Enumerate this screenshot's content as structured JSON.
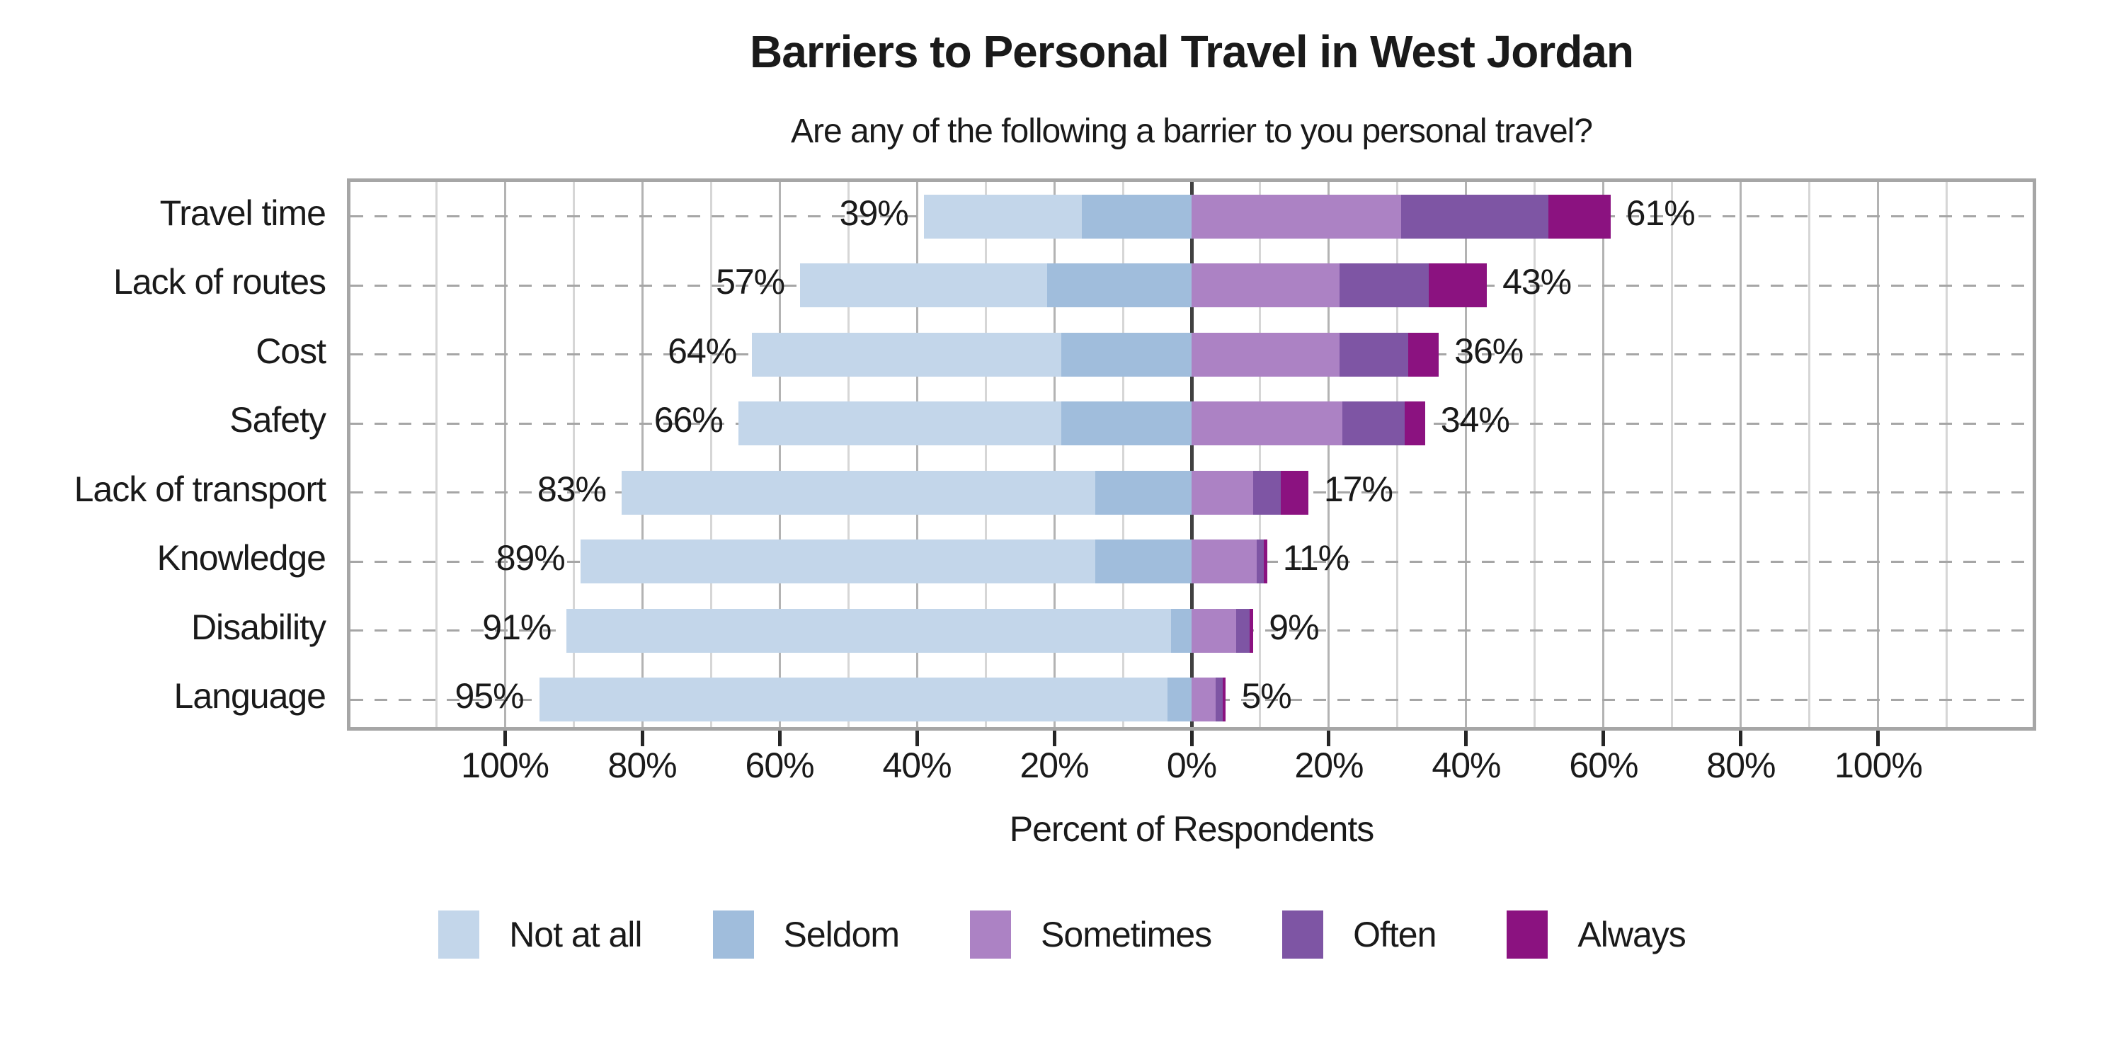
{
  "chart_data": {
    "type": "bar",
    "variant": "diverging-stacked-horizontal",
    "title": "Barriers to Personal Travel in West Jordan",
    "subtitle": "Are any of the following a barrier to you personal travel?",
    "xlabel": "Percent of Respondents",
    "x_axis": {
      "range_pct": [
        -123,
        123
      ],
      "tick_step": 20,
      "grid_step": 10,
      "ticks": [
        {
          "value": -100,
          "label": "100%"
        },
        {
          "value": -80,
          "label": "80%"
        },
        {
          "value": -60,
          "label": "60%"
        },
        {
          "value": -40,
          "label": "40%"
        },
        {
          "value": -20,
          "label": "20%"
        },
        {
          "value": 0,
          "label": "0%"
        },
        {
          "value": 20,
          "label": "20%"
        },
        {
          "value": 40,
          "label": "40%"
        },
        {
          "value": 60,
          "label": "60%"
        },
        {
          "value": 80,
          "label": "80%"
        },
        {
          "value": 100,
          "label": "100%"
        }
      ]
    },
    "legend": {
      "position": "bottom",
      "entries": [
        {
          "key": "not_at_all",
          "label": "Not at all",
          "color": "#c3d6ea"
        },
        {
          "key": "seldom",
          "label": "Seldom",
          "color": "#a0bddc"
        },
        {
          "key": "sometimes",
          "label": "Sometimes",
          "color": "#ac82c4"
        },
        {
          "key": "often",
          "label": "Often",
          "color": "#7e55a4"
        },
        {
          "key": "always",
          "label": "Always",
          "color": "#8b1280"
        }
      ]
    },
    "categories": [
      "Travel time",
      "Lack of routes",
      "Cost",
      "Safety",
      "Lack of transport",
      "Knowledge",
      "Disability",
      "Language"
    ],
    "rows": [
      {
        "category": "Travel time",
        "left_label": "39%",
        "right_label": "61%",
        "not_at_all": 23.0,
        "seldom": 16.0,
        "sometimes": 30.5,
        "often": 21.5,
        "always": 9.0
      },
      {
        "category": "Lack of routes",
        "left_label": "57%",
        "right_label": "43%",
        "not_at_all": 36.0,
        "seldom": 21.0,
        "sometimes": 21.5,
        "often": 13.0,
        "always": 8.5
      },
      {
        "category": "Cost",
        "left_label": "64%",
        "right_label": "36%",
        "not_at_all": 45.0,
        "seldom": 19.0,
        "sometimes": 21.5,
        "often": 10.0,
        "always": 4.5
      },
      {
        "category": "Safety",
        "left_label": "66%",
        "right_label": "34%",
        "not_at_all": 47.0,
        "seldom": 19.0,
        "sometimes": 22.0,
        "often": 9.0,
        "always": 3.0
      },
      {
        "category": "Lack of transport",
        "left_label": "83%",
        "right_label": "17%",
        "not_at_all": 69.0,
        "seldom": 14.0,
        "sometimes": 9.0,
        "often": 4.0,
        "always": 4.0
      },
      {
        "category": "Knowledge",
        "left_label": "89%",
        "right_label": "11%",
        "not_at_all": 75.0,
        "seldom": 14.0,
        "sometimes": 9.5,
        "often": 1.0,
        "always": 0.5
      },
      {
        "category": "Disability",
        "left_label": "91%",
        "right_label": "9%",
        "not_at_all": 88.0,
        "seldom": 3.0,
        "sometimes": 6.5,
        "often": 2.0,
        "always": 0.5
      },
      {
        "category": "Language",
        "left_label": "95%",
        "right_label": "5%",
        "not_at_all": 91.5,
        "seldom": 3.5,
        "sometimes": 3.5,
        "often": 1.0,
        "always": 0.5
      }
    ],
    "grid": true,
    "style": {
      "zero_line_color": "#404040",
      "major_grid_color": "#b3b3b3",
      "minor_grid_color": "#d6d6d6",
      "plot_border_color": "#a6a6a6",
      "row_dash_color": "#a6a6a6",
      "text_color": "#1a1a1a"
    }
  }
}
